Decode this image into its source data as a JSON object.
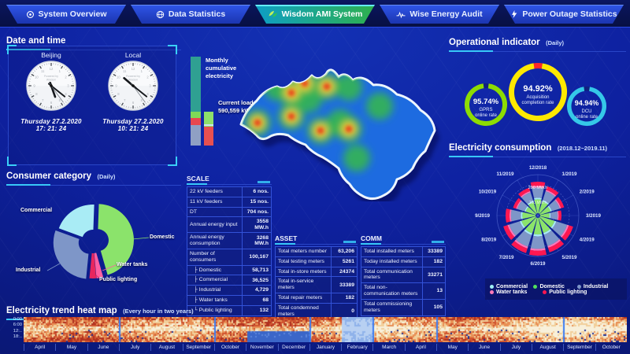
{
  "nav": {
    "tabs": [
      {
        "label": "System Overview",
        "icon": "system-overview-icon",
        "active": false
      },
      {
        "label": "Data Statistics",
        "icon": "data-statistics-icon",
        "active": false
      },
      {
        "label": "Wisdom AMI System",
        "icon": "wisdom-ami-icon",
        "active": true
      },
      {
        "label": "Wise Energy Audit",
        "icon": "wise-energy-audit-icon",
        "active": false
      },
      {
        "label": "Power Outage Statistics",
        "icon": "power-outage-icon",
        "active": false
      }
    ]
  },
  "datetime": {
    "title": "Date and time",
    "watermark_line1": "Powered by",
    "watermark_line2": "Wisdom",
    "clocks": [
      {
        "city": "Beijing",
        "date": "Thursday  27.2.2020",
        "time": "17: 21: 24",
        "hours": 17,
        "minutes": 21,
        "seconds": 24
      },
      {
        "city": "Local",
        "date": "Thursday  27.2.2020",
        "time": "10: 21: 24",
        "hours": 10,
        "minutes": 21,
        "seconds": 24
      }
    ]
  },
  "consumer_panel": {
    "title": "Consumer category",
    "subtitle": "(Daily)"
  },
  "bars": {
    "monthly_label": "Monthly cumulative electricity",
    "current_load_label": "Current load",
    "current_load_value": "590,559 kW"
  },
  "scale_table": {
    "title": "SCALE",
    "rows": [
      {
        "label": "22 kV feeders",
        "value": "6 nos."
      },
      {
        "label": "11 kV feeders",
        "value": "15 nos."
      },
      {
        "label": "DT",
        "value": "704 nos."
      },
      {
        "label": "Annual energy input",
        "value": "3558 MW.h"
      },
      {
        "label": "Annual energy consumption",
        "value": "3268 MW.h"
      },
      {
        "label": "Number of consumers",
        "value": "100,167"
      },
      {
        "label": "├ Domestic",
        "value": "58,713"
      },
      {
        "label": "├ Commercial",
        "value": "36,525"
      },
      {
        "label": "├ Industrial",
        "value": "4,729"
      },
      {
        "label": "├ Water tanks",
        "value": "68"
      },
      {
        "label": "└ Public lighting",
        "value": "132"
      }
    ]
  },
  "asset_table": {
    "title": "ASSET",
    "rows": [
      {
        "label": "Total meters number",
        "value": "63,206"
      },
      {
        "label": "Total testing meters",
        "value": "5261"
      },
      {
        "label": "Total in-store meters",
        "value": "24374"
      },
      {
        "label": "Total in-service meters",
        "value": "33389"
      },
      {
        "label": "Total repair meters",
        "value": "182"
      },
      {
        "label": "Total condemned meters",
        "value": "0"
      }
    ]
  },
  "comm_table": {
    "title": "COMM",
    "rows": [
      {
        "label": "Total installed meters",
        "value": "33389"
      },
      {
        "label": "Today installed meters",
        "value": "182"
      },
      {
        "label": "Total communication meters",
        "value": "33271"
      },
      {
        "label": "Total non-communication meters",
        "value": "13"
      },
      {
        "label": "Total commissioning meters",
        "value": "105"
      }
    ]
  },
  "operational_panel": {
    "title": "Operational indicator",
    "subtitle": "(Daily)"
  },
  "consumption_panel": {
    "title": "Electricity consumption",
    "subtitle": "(2018.12~2019.11)"
  },
  "heatmap_panel": {
    "title": "Electricity trend heat map",
    "subtitle": "(Every hour in two years)",
    "y_labels": [
      "0:00",
      "6:00",
      "12:..",
      "18:.."
    ],
    "months": [
      "April",
      "May",
      "June",
      "July",
      "August",
      "September",
      "October",
      "November",
      "December",
      "January",
      "February",
      "March",
      "April",
      "May",
      "June",
      "July",
      "August",
      "September",
      "October"
    ]
  },
  "chart_data": [
    {
      "id": "consumer-category-donut",
      "type": "pie",
      "title": "Consumer category (Daily)",
      "slices": [
        {
          "label": "Domestic",
          "value": 45,
          "color": "#8be36b"
        },
        {
          "label": "Water tanks",
          "value": 3,
          "color": "#ff5fa2"
        },
        {
          "label": "Public lighting",
          "value": 3,
          "color": "#e8265e"
        },
        {
          "label": "Industrial",
          "value": 29,
          "color": "#7e96c8"
        },
        {
          "label": "Commercial",
          "value": 20,
          "color": "#a9ecf5"
        }
      ]
    },
    {
      "id": "operational-gauges",
      "type": "pie",
      "title": "Operational indicator (Daily)",
      "gauges": [
        {
          "value": 95.74,
          "value_label": "95.74%",
          "label1": "GPRS",
          "label2": "online rate",
          "color": "#8ddc02",
          "gap_color": "#10207e"
        },
        {
          "value": 94.92,
          "value_label": "94.92%",
          "label1": "Acquisition",
          "label2": "completion rate",
          "color": "#ffe800",
          "gap_color": "#ff2828"
        },
        {
          "value": 94.94,
          "value_label": "94.94%",
          "label1": "DCU",
          "label2": "online rate",
          "color": "#35c8e8",
          "gap_color": "#10207e"
        }
      ]
    },
    {
      "id": "electricity-consumption-rose",
      "type": "bar",
      "polar": true,
      "title": "Electricity consumption (2018.12~2019.11)",
      "unit": "MW.h",
      "axis_rings": [
        {
          "value": 100,
          "label": "100 MW.h"
        },
        {
          "value": 200,
          "label": "200 MW.h"
        }
      ],
      "axis_max": 260,
      "categories": [
        "12/2018",
        "1/2019",
        "2/2019",
        "3/2019",
        "4/2019",
        "5/2019",
        "6/2019",
        "7/2019",
        "8/2019",
        "9/2019",
        "10/2019",
        "11/2019"
      ],
      "totals": [
        215,
        195,
        175,
        150,
        235,
        245,
        255,
        250,
        230,
        205,
        165,
        185
      ],
      "stack_order": [
        "Domestic",
        "Commercial",
        "Industrial",
        "Water tanks",
        "Public lighting"
      ],
      "stack_fractions": [
        0.44,
        0.05,
        0.33,
        0.05,
        0.13
      ],
      "stack_colors": [
        "#8be36b",
        "#a9ecf5",
        "#7e96c8",
        "#ff7ab8",
        "#ff1750"
      ],
      "legend": [
        {
          "label": "Commercial",
          "color": "#9ff0f5"
        },
        {
          "label": "Domestic",
          "color": "#52e05c"
        },
        {
          "label": "Industrial",
          "color": "#7e96c8"
        },
        {
          "label": "Water tanks",
          "color": "#ff7ab8"
        },
        {
          "label": "Public lighting",
          "color": "#ff1750"
        }
      ]
    },
    {
      "id": "monthly-cumulative-bars",
      "type": "bar",
      "stacks": [
        {
          "name": "Monthly cumulative electricity",
          "segments": [
            {
              "color": "#2fa092",
              "frac": 0.62
            },
            {
              "color": "#7ed957",
              "frac": 0.07
            },
            {
              "color": "#e8474f",
              "frac": 0.08
            },
            {
              "color": "#8fa0c4",
              "frac": 0.23
            }
          ]
        },
        {
          "name": "Current load",
          "value_label": "590,559 kW",
          "segments": [
            {
              "color": "#8ee06a",
              "frac": 0.45
            },
            {
              "color": "#e85050",
              "frac": 0.55
            }
          ]
        }
      ]
    },
    {
      "id": "electricity-trend-heatmap",
      "type": "heatmap",
      "title": "Electricity trend heat map (Every hour in two years)",
      "x_months": [
        "April",
        "May",
        "June",
        "July",
        "August",
        "September",
        "October",
        "November",
        "December",
        "January",
        "February",
        "March",
        "April",
        "May",
        "June",
        "July",
        "August",
        "September",
        "October"
      ],
      "y_hours": [
        "0:00",
        "6:00",
        "12:00",
        "18:00"
      ],
      "palette_warm": [
        "#f8f0da",
        "#f2cf9a",
        "#e89055",
        "#d05530",
        "#b03220"
      ],
      "palette_cool": [
        "#b8d0f2",
        "#8fb2ea",
        "#5c86dd",
        "#3b66c8"
      ],
      "cool_full_month_index": 10,
      "cool_lower_month_indices": [
        7,
        8
      ],
      "separator_month_indices": [
        3,
        6,
        9,
        11,
        13,
        17
      ]
    }
  ]
}
